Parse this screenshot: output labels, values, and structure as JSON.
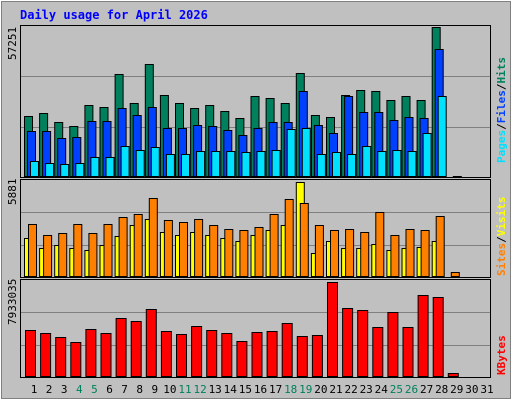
{
  "colors": {
    "background": "#c0c0c0",
    "hits": "#00805c",
    "files": "#0040ff",
    "pages": "#00e0ff",
    "visits": "#ffff00",
    "sites": "#ff8000",
    "kbytes": "#ff0000",
    "title": "#0000ff",
    "weekend": "#00805c"
  },
  "chart_data": [
    {
      "type": "bar",
      "title": "Daily usage for April 2026",
      "days": [
        "1",
        "2",
        "3",
        "4",
        "5",
        "6",
        "7",
        "8",
        "9",
        "10",
        "11",
        "12",
        "13",
        "14",
        "15",
        "16",
        "17",
        "18",
        "19",
        "20",
        "21",
        "22",
        "23",
        "24",
        "25",
        "26",
        "27",
        "28",
        "29",
        "30",
        "31"
      ],
      "weekend_days": [
        "4",
        "5",
        "11",
        "12",
        "18",
        "19",
        "25",
        "26"
      ],
      "max_label": "57251",
      "ymax": 57251,
      "series": [
        {
          "name": "Hits",
          "values": [
            23500,
            24500,
            21000,
            19500,
            27500,
            27000,
            39500,
            28500,
            43500,
            31500,
            28500,
            26500,
            27500,
            25500,
            22500,
            31000,
            30500,
            28500,
            40000,
            24000,
            23000,
            31500,
            33500,
            33000,
            29500,
            31000,
            29500,
            57500,
            0,
            0,
            0
          ]
        },
        {
          "name": "Files",
          "values": [
            17500,
            17500,
            15000,
            15500,
            21500,
            21500,
            26500,
            24000,
            27000,
            19000,
            19000,
            20000,
            19500,
            18000,
            16000,
            19000,
            21000,
            21000,
            33000,
            20000,
            17000,
            31000,
            25000,
            25000,
            22000,
            23000,
            22500,
            49000,
            0,
            0,
            0
          ]
        },
        {
          "name": "Pages",
          "values": [
            6000,
            5500,
            5000,
            5500,
            7500,
            7500,
            12000,
            10500,
            11500,
            9000,
            9000,
            10000,
            10000,
            10000,
            9500,
            10000,
            10500,
            18500,
            19000,
            9000,
            9500,
            9000,
            12000,
            10000,
            10500,
            10000,
            17000,
            31000,
            500,
            0,
            0
          ]
        }
      ],
      "legend": [
        "Pages",
        "Files",
        "Hits"
      ]
    },
    {
      "type": "bar",
      "max_label": "5881",
      "ymax": 5881,
      "series": [
        {
          "name": "Visits",
          "values": [
            2400,
            1800,
            2000,
            1800,
            1700,
            2000,
            2550,
            3200,
            3600,
            2800,
            2600,
            2800,
            2600,
            2400,
            2200,
            2600,
            2900,
            3200,
            5881,
            1500,
            2200,
            1800,
            1800,
            2050,
            1700,
            1800,
            1850,
            2200,
            0,
            0,
            0
          ]
        },
        {
          "name": "Sites",
          "values": [
            3300,
            2600,
            2700,
            3300,
            2700,
            3300,
            3700,
            3900,
            4900,
            3500,
            3400,
            3600,
            3200,
            3000,
            2900,
            3100,
            3900,
            4800,
            4600,
            3200,
            2900,
            3000,
            2800,
            4000,
            2600,
            3000,
            2900,
            3800,
            300,
            0,
            0
          ]
        }
      ],
      "legend": [
        "Sites",
        "Visits"
      ]
    },
    {
      "type": "bar",
      "max_label": "7933035",
      "ymax": 7933035,
      "series": [
        {
          "name": "KBytes",
          "values": [
            3900000,
            3650000,
            3300000,
            2950000,
            4000000,
            3700000,
            4900000,
            4650000,
            5700000,
            3800000,
            3550000,
            4250000,
            3900000,
            3700000,
            3000000,
            3750000,
            3850000,
            4500000,
            3450000,
            3500000,
            7933035,
            5800000,
            5600000,
            4200000,
            5400000,
            4200000,
            6850000,
            6650000,
            300000,
            0,
            0
          ]
        }
      ],
      "legend": [
        "KBytes"
      ]
    }
  ]
}
